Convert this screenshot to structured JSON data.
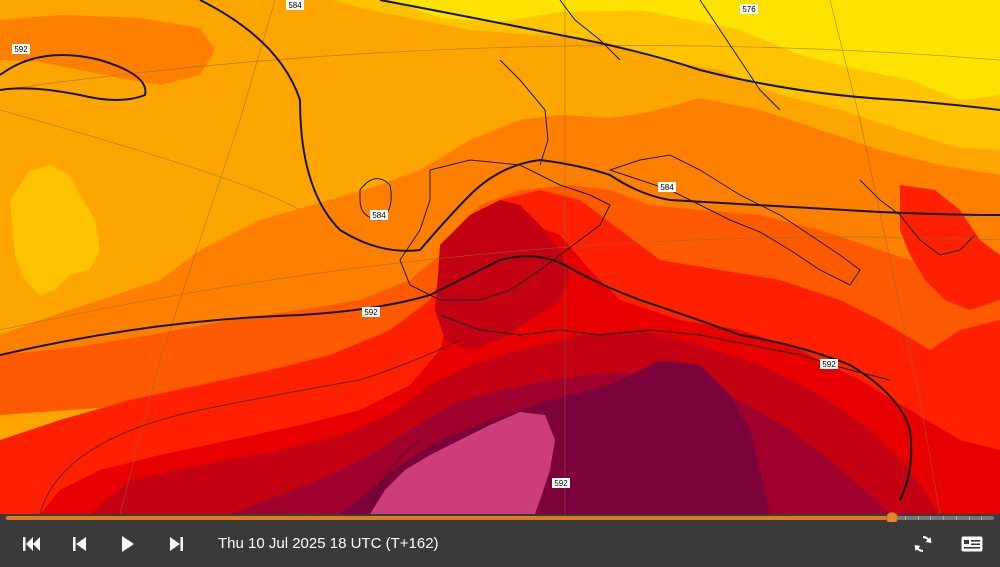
{
  "map": {
    "contour_labels": [
      "592",
      "584",
      "576",
      "584",
      "592",
      "592",
      "584",
      "592"
    ],
    "layers": {
      "colors": {
        "light_yellow": "#ffe300",
        "yellow_orange": "#ffc300",
        "light_orange": "#ffa500",
        "orange": "#ff8000",
        "dark_orange": "#ff5a00",
        "red": "#ff2000",
        "bright_red": "#e80000",
        "dark_red": "#c40013",
        "maroon": "#a0002c",
        "plum": "#7c0039",
        "pink": "#cc3d7a",
        "coast": "#1a1a1a",
        "contour": "#161616"
      }
    }
  },
  "timeline": {
    "progress": 0.897,
    "tick_count": 7
  },
  "controls": {
    "first_icon": "skip-to-start",
    "prev_icon": "step-back",
    "play_icon": "play",
    "next_icon": "step-forward",
    "time_label": "Thu 10 Jul 2025 18 UTC (T+162)",
    "refresh_icon": "refresh",
    "legend_icon": "legend-toggle"
  }
}
